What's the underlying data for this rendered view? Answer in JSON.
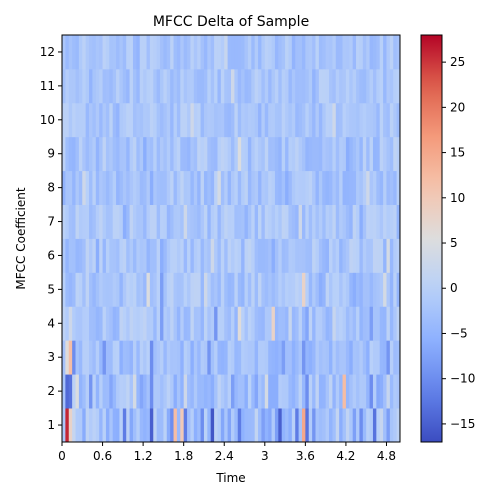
{
  "chart_data": {
    "type": "heatmap",
    "title": "MFCC Delta of Sample",
    "xlabel": "Time",
    "ylabel": "MFCC Coefficient",
    "x_ticks": [
      "0",
      "0.6",
      "1.2",
      "1.8",
      "2.4",
      "3",
      "3.6",
      "4.2",
      "4.8"
    ],
    "x_tick_values": [
      0,
      0.6,
      1.2,
      1.8,
      2.4,
      3.0,
      3.6,
      4.2,
      4.8
    ],
    "xlim": [
      0,
      5.0
    ],
    "y_ticks": [
      "1",
      "2",
      "3",
      "4",
      "5",
      "6",
      "7",
      "8",
      "9",
      "10",
      "11",
      "12"
    ],
    "ylim": [
      0.5,
      12.5
    ],
    "colormap": "coolwarm",
    "vmin": -17,
    "vmax": 28,
    "colorbar_ticks": [
      -15,
      -10,
      -5,
      0,
      5,
      10,
      15,
      20,
      25
    ],
    "colorbar_tick_labels": [
      "−15",
      "−10",
      "−5",
      "0",
      "5",
      "10",
      "15",
      "20",
      "25"
    ],
    "num_frames": 100,
    "rows": [
      {
        "coef": 1,
        "baseline": -3,
        "spread": 5,
        "events": [
          [
            0.05,
            27
          ],
          [
            0.07,
            26
          ],
          [
            0.1,
            20
          ],
          [
            0.13,
            8
          ],
          [
            0.93,
            -12
          ],
          [
            1.33,
            -15
          ],
          [
            1.6,
            -10
          ],
          [
            1.65,
            12
          ],
          [
            1.75,
            10
          ],
          [
            1.83,
            -12
          ],
          [
            2.05,
            -10
          ],
          [
            2.22,
            -16
          ],
          [
            2.62,
            -12
          ],
          [
            3.2,
            -15
          ],
          [
            3.48,
            -12
          ],
          [
            3.55,
            15
          ],
          [
            3.63,
            -13
          ],
          [
            3.7,
            -9
          ],
          [
            4.4,
            -10
          ],
          [
            4.62,
            -13
          ],
          [
            4.8,
            -8
          ]
        ]
      },
      {
        "coef": 2,
        "baseline": -3,
        "spread": 4,
        "events": [
          [
            0.06,
            -14
          ],
          [
            0.1,
            -13
          ],
          [
            0.2,
            5
          ],
          [
            0.4,
            -9
          ],
          [
            1.08,
            4
          ],
          [
            1.3,
            -10
          ],
          [
            1.8,
            3
          ],
          [
            2.5,
            -8
          ],
          [
            3.0,
            4
          ],
          [
            3.6,
            -10
          ],
          [
            4.15,
            12
          ],
          [
            4.55,
            -10
          ],
          [
            4.8,
            2
          ]
        ]
      },
      {
        "coef": 3,
        "baseline": -3,
        "spread": 3,
        "events": [
          [
            0.05,
            6
          ],
          [
            0.1,
            12
          ],
          [
            0.15,
            -10
          ],
          [
            0.6,
            -9
          ],
          [
            1.32,
            -10
          ],
          [
            2.18,
            -9
          ],
          [
            3.25,
            -8
          ],
          [
            3.58,
            -9
          ],
          [
            4.25,
            -6
          ],
          [
            4.82,
            -9
          ]
        ]
      },
      {
        "coef": 4,
        "baseline": -2,
        "spread": 3,
        "events": [
          [
            0.1,
            3
          ],
          [
            1.45,
            -8
          ],
          [
            2.28,
            -9
          ],
          [
            2.6,
            6
          ],
          [
            3.1,
            8
          ],
          [
            3.35,
            2
          ],
          [
            3.6,
            -7
          ],
          [
            4.0,
            2
          ],
          [
            4.55,
            -8
          ]
        ]
      },
      {
        "coef": 5,
        "baseline": -2,
        "spread": 3,
        "events": [
          [
            1.25,
            5
          ],
          [
            1.45,
            -8
          ],
          [
            2.1,
            3
          ],
          [
            3.55,
            8
          ],
          [
            3.8,
            -6
          ],
          [
            4.3,
            -6
          ],
          [
            4.75,
            4
          ]
        ]
      },
      {
        "coef": 6,
        "baseline": -2,
        "spread": 3,
        "events": [
          [
            0.5,
            -6
          ],
          [
            1.45,
            -6
          ],
          [
            2.2,
            3
          ],
          [
            3.1,
            -6
          ],
          [
            3.9,
            -5
          ],
          [
            4.8,
            4
          ]
        ]
      },
      {
        "coef": 7,
        "baseline": -2,
        "spread": 3,
        "events": [
          [
            0.9,
            -6
          ],
          [
            1.8,
            3
          ],
          [
            2.7,
            -5
          ],
          [
            3.5,
            3
          ],
          [
            4.4,
            -6
          ]
        ]
      },
      {
        "coef": 8,
        "baseline": -2,
        "spread": 3,
        "events": [
          [
            0.3,
            3
          ],
          [
            1.3,
            -6
          ],
          [
            2.3,
            4
          ],
          [
            3.3,
            -6
          ],
          [
            4.5,
            3
          ]
        ]
      },
      {
        "coef": 9,
        "baseline": -2,
        "spread": 3,
        "events": [
          [
            0.5,
            -5
          ],
          [
            1.2,
            -6
          ],
          [
            2.6,
            5
          ],
          [
            3.2,
            -5
          ],
          [
            4.2,
            -6
          ]
        ]
      },
      {
        "coef": 10,
        "baseline": -2,
        "spread": 2.5,
        "events": [
          [
            0.8,
            -5
          ],
          [
            1.9,
            3
          ],
          [
            2.9,
            -5
          ],
          [
            4.0,
            3
          ]
        ]
      },
      {
        "coef": 11,
        "baseline": -2,
        "spread": 2.5,
        "events": [
          [
            0.4,
            -5
          ],
          [
            1.6,
            -4
          ],
          [
            2.5,
            3
          ],
          [
            3.7,
            -5
          ]
        ]
      },
      {
        "coef": 12,
        "baseline": -2,
        "spread": 2.5,
        "events": [
          [
            0.2,
            -4
          ],
          [
            1.1,
            -5
          ],
          [
            2.4,
            2
          ],
          [
            3.4,
            -5
          ],
          [
            4.6,
            -4
          ]
        ]
      }
    ]
  }
}
